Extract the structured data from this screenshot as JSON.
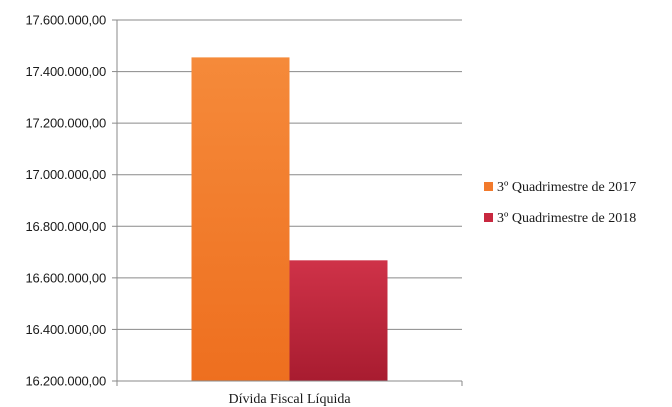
{
  "chart_data": {
    "type": "bar",
    "categories": [
      "Dívida Fiscal Líquida"
    ],
    "series": [
      {
        "name": "3º Quadrimestre de 2017",
        "values": [
          17455000
        ],
        "color": "#f27a2c"
      },
      {
        "name": "3º Quadrimestre de 2018",
        "values": [
          16668000
        ],
        "color": "#c8283f"
      }
    ],
    "ylim": [
      16200000,
      17600000
    ],
    "yticks": [
      16200000,
      16400000,
      16600000,
      16800000,
      17000000,
      17200000,
      17400000,
      17600000
    ],
    "ytick_labels": [
      "16.200.000,00",
      "16.400.000,00",
      "16.600.000,00",
      "16.800.000,00",
      "17.000.000,00",
      "17.200.000,00",
      "17.400.000,00",
      "17.600.000,00"
    ],
    "grid": true,
    "legend_position": "right",
    "title": "",
    "xlabel": "",
    "ylabel": ""
  }
}
